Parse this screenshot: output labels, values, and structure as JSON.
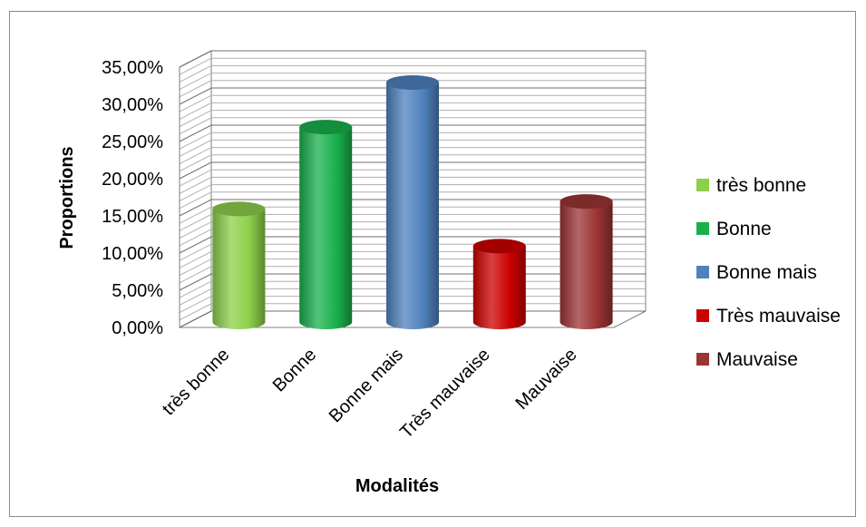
{
  "chart_data": {
    "type": "bar",
    "style": "3d-cylinder",
    "categories": [
      "très bonne",
      "Bonne",
      "Bonne mais",
      "Très mauvaise",
      "Mauvaise"
    ],
    "values": [
      15.2,
      26.2,
      32.2,
      10.2,
      16.2
    ],
    "colors": [
      "#8cd04a",
      "#19b04c",
      "#4f81bd",
      "#cc0000",
      "#9c3434"
    ],
    "xlabel": "Modalités",
    "ylabel": "Proportions",
    "ylim": [
      0,
      35
    ],
    "ytick_step": 5,
    "ytick_labels": [
      "0,00%",
      "5,00%",
      "10,00%",
      "15,00%",
      "20,00%",
      "25,00%",
      "30,00%",
      "35,00%"
    ],
    "grid": true,
    "legend": {
      "placement": "right",
      "entries": [
        "très bonne",
        "Bonne",
        "Bonne mais",
        "Très mauvaise",
        "Mauvaise"
      ]
    }
  }
}
